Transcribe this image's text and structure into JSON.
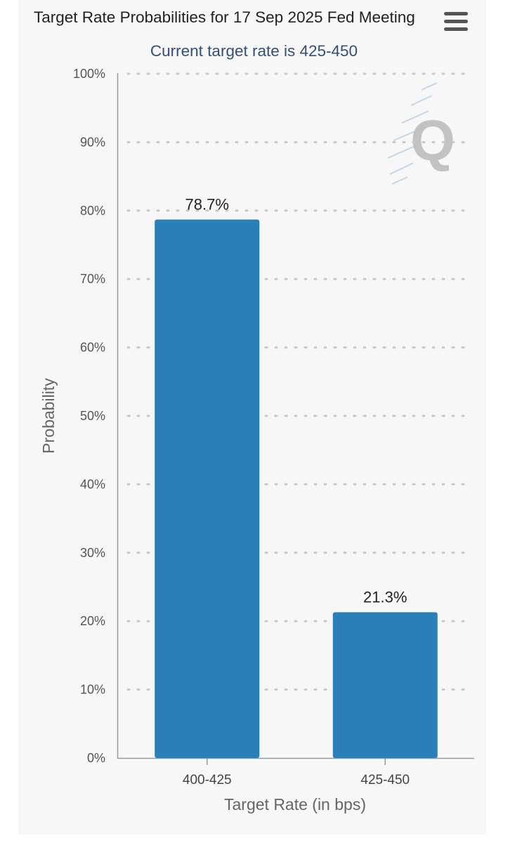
{
  "header": {
    "title": "Target Rate Probabilities for 17 Sep 2025 Fed Meeting",
    "subtitle": "Current target rate is 425-450",
    "menu_icon": "hamburger-menu-icon"
  },
  "watermark": {
    "text": "Q"
  },
  "chart_data": {
    "type": "bar",
    "title": "Target Rate Probabilities for 17 Sep 2025 Fed Meeting",
    "subtitle": "Current target rate is 425-450",
    "categories": [
      "400-425",
      "425-450"
    ],
    "values": [
      78.7,
      21.3
    ],
    "data_labels": [
      "78.7%",
      "21.3%"
    ],
    "xlabel": "Target Rate (in bps)",
    "ylabel": "Probability",
    "ylim": [
      0,
      100
    ],
    "y_ticks": [
      0,
      10,
      20,
      30,
      40,
      50,
      60,
      70,
      80,
      90,
      100
    ],
    "y_tick_labels": [
      "0%",
      "10%",
      "20%",
      "30%",
      "40%",
      "50%",
      "60%",
      "70%",
      "80%",
      "90%",
      "100%"
    ],
    "grid": true,
    "legend": "none",
    "colors": {
      "bar": "#2a7fb8"
    }
  }
}
